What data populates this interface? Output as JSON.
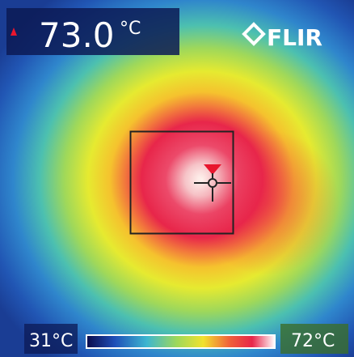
{
  "reading": {
    "value": "73.0",
    "unit": "°C"
  },
  "logo": "FLIR",
  "scale": {
    "min": "31°C",
    "max": "72°C"
  }
}
